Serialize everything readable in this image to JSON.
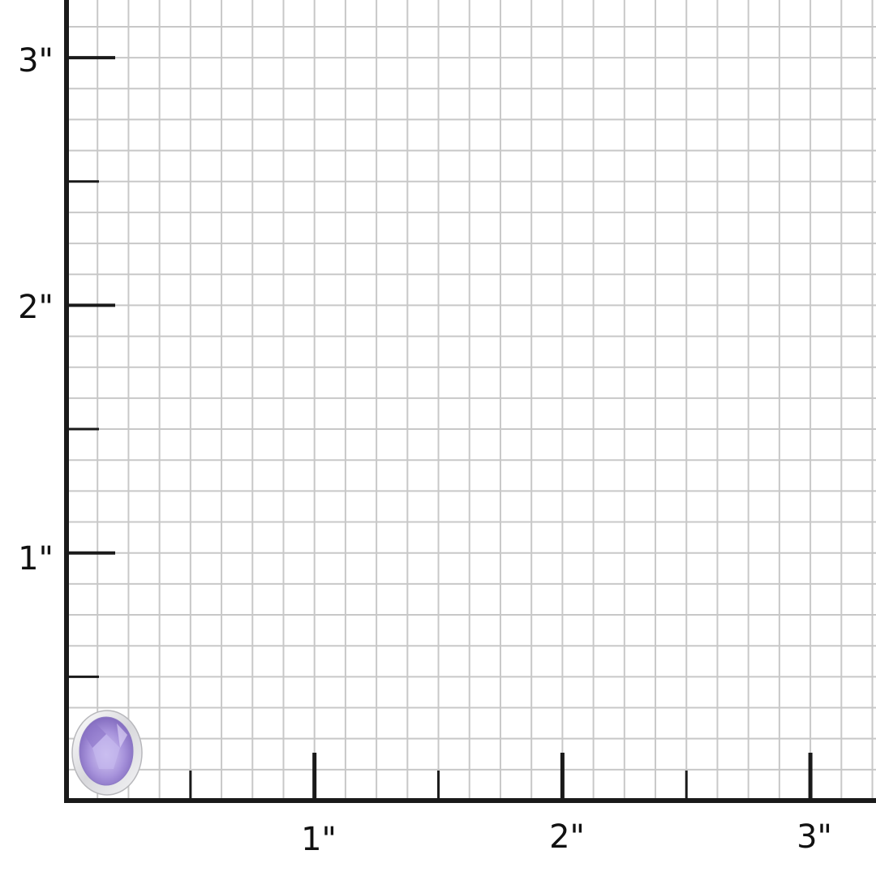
{
  "ruler": {
    "unit_symbol": "\"",
    "x_labels": [
      "1\"",
      "2\"",
      "3\""
    ],
    "y_labels": [
      "1\"",
      "2\"",
      "3\""
    ],
    "grid_subdivisions_per_inch": 8,
    "grid_color": "#c8c8c8",
    "axis_color": "#1a1a1a"
  },
  "product": {
    "type": "oval amethyst bezel-set earring",
    "stone_color": "#a894dc",
    "metal_color": "#e6e6e8"
  }
}
